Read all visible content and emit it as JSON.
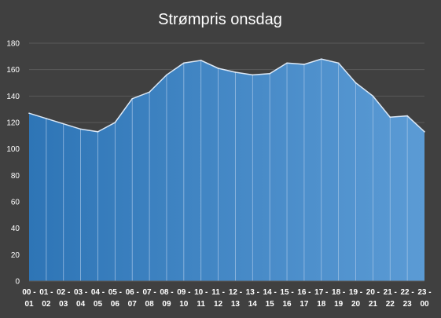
{
  "chart_data": {
    "type": "area",
    "title": "Strømpris onsdag",
    "xlabel": "",
    "ylabel": "",
    "ylim": [
      0,
      180
    ],
    "yticks": [
      0,
      20,
      40,
      60,
      80,
      100,
      120,
      140,
      160,
      180
    ],
    "grid": true,
    "categories": [
      "00 - 01",
      "01 - 02",
      "02 - 03",
      "03 - 04",
      "04 - 05",
      "05 - 06",
      "06 - 07",
      "07 - 08",
      "08 - 09",
      "09 - 10",
      "10 - 11",
      "11 - 12",
      "12 - 13",
      "13 - 14",
      "14 - 15",
      "15 - 16",
      "16 - 17",
      "17 - 18",
      "18 - 19",
      "19 - 20",
      "20 - 21",
      "21 - 22",
      "22 - 23",
      "23 - 00"
    ],
    "values": [
      127,
      123,
      119,
      115,
      113,
      120,
      138,
      143,
      156,
      165,
      167,
      161,
      158,
      156,
      157,
      165,
      164,
      168,
      165,
      150,
      140,
      124,
      125,
      113
    ],
    "colors": {
      "background": "#404040",
      "grid": "#5a5a5a",
      "fill_start": "#2e75b6",
      "fill_end": "#5b9bd5",
      "line": "#dce9f7",
      "divider": "#a9c7e8",
      "text": "#ffffff"
    }
  }
}
